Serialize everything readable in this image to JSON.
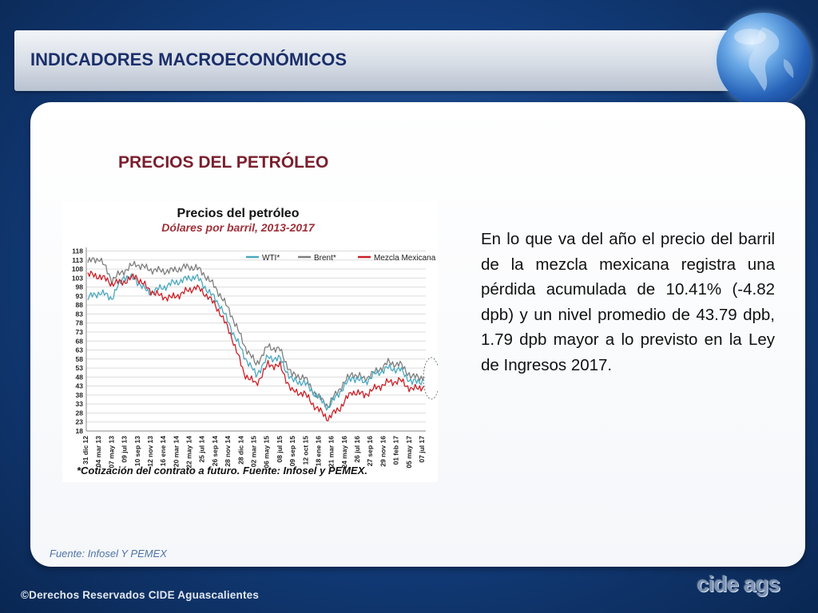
{
  "header": {
    "title": "INDICADORES MACROECONÓMICOS"
  },
  "section": {
    "title": "PRECIOS DEL PETRÓLEO"
  },
  "description": "En lo que va del año el precio del barril de la mezcla mexicana registra una pérdida acumulada de 10.41% (-4.82 dpb) y un nivel promedio de 43.79 dpb, 1.79 dpb mayor a lo previsto en la Ley de Ingresos 2017.",
  "source_note": "Fuente: Infosel Y PEMEX",
  "footer": {
    "copyright": "©Derechos Reservados CIDE Aguascalientes",
    "logo_text": "cide ags"
  },
  "colors": {
    "wti": "#4aa8c0",
    "brent": "#7f7f7f",
    "mezcla": "#cc1f26",
    "title_red": "#7a1f2d",
    "header_blue": "#1b2f6b"
  },
  "chart_data": {
    "type": "line",
    "title": "Precios del petróleo",
    "subtitle": "Dólares por barril, 2013-2017",
    "footnote": "*Cotización del contrato a futuro. Fuente: Infosel y PEMEX.",
    "ylim": [
      18,
      120
    ],
    "yticks": [
      118,
      113,
      108,
      103,
      98,
      93,
      88,
      83,
      78,
      73,
      68,
      63,
      58,
      53,
      48,
      43,
      38,
      33,
      28,
      23,
      18
    ],
    "xticks": [
      "31 dic 12",
      "04 mar 13",
      "07 may 13",
      "09 jul 13",
      "10 sep 13",
      "12 nov 13",
      "16 ene 14",
      "20 mar 14",
      "22 may 14",
      "25 jul 14",
      "26 sep 14",
      "28 nov 14",
      "28 dic 14",
      "02 mar 15",
      "06 may 15",
      "08 jul 15",
      "09 sep 15",
      "12 oct 15",
      "18 ene 16",
      "21 mar 16",
      "24 may 16",
      "26 jul 16",
      "27 sep 16",
      "29 nov 16",
      "01 feb 17",
      "05 may 17",
      "07 jul 17"
    ],
    "grid": true,
    "legend": "top",
    "series": [
      {
        "name": "WTI*",
        "values": [
          92,
          95,
          92,
          104,
          102,
          95,
          97,
          100,
          102,
          104,
          96,
          88,
          74,
          60,
          49,
          59,
          58,
          46,
          45,
          38,
          31,
          40,
          48,
          45,
          50,
          53,
          52,
          45,
          46
        ]
      },
      {
        "name": "Brent*",
        "values": [
          112,
          114,
          102,
          107,
          111,
          108,
          107,
          107,
          109,
          109,
          103,
          94,
          82,
          66,
          55,
          65,
          63,
          49,
          48,
          38,
          32,
          42,
          50,
          47,
          51,
          56,
          55,
          48,
          48
        ]
      },
      {
        "name": "Mezcla Mexicana",
        "values": [
          105,
          104,
          100,
          101,
          104,
          97,
          93,
          92,
          95,
          98,
          93,
          84,
          70,
          50,
          44,
          55,
          54,
          40,
          39,
          31,
          25,
          31,
          40,
          38,
          42,
          45,
          46,
          41,
          43
        ]
      }
    ]
  }
}
